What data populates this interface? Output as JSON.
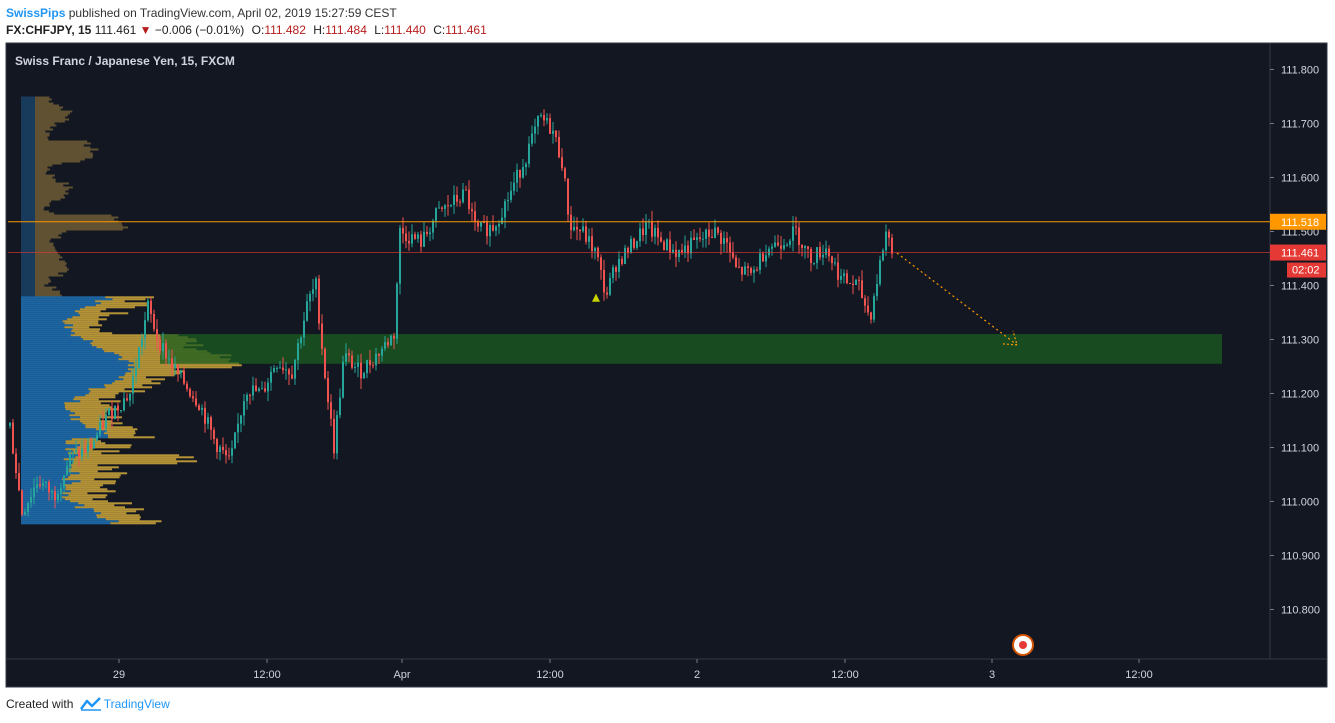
{
  "header": {
    "author": "SwissPips",
    "published_text": "published on TradingView.com, April 02, 2019 15:27:59 CEST",
    "symbol": "FX:CHFJPY, 15",
    "last_price": "111.461",
    "change_arrow": "▼",
    "change": "−0.006 (−0.01%)",
    "open_label": "O:",
    "open": "111.482",
    "high_label": "H:",
    "high": "111.484",
    "low_label": "L:",
    "low": "111.440",
    "close_label": "C:",
    "close": "111.461"
  },
  "chart_data": {
    "type": "candlestick",
    "title": "Swiss Franc / Japanese Yen, 15, FXCM",
    "price_axis_ticks": [
      "111.800",
      "111.700",
      "111.600",
      "111.500",
      "111.400",
      "111.300",
      "111.200",
      "111.100",
      "111.000",
      "110.900",
      "110.800"
    ],
    "time_axis_ticks": [
      "29",
      "12:00",
      "Apr",
      "12:00",
      "2",
      "12:00",
      "3",
      "12:00"
    ],
    "ylim": [
      110.73,
      111.85
    ],
    "grid": false,
    "price_line": {
      "value": 111.518,
      "label": "111.518",
      "color": "#ff9800"
    },
    "last_price": {
      "value": 111.461,
      "label": "111.461",
      "countdown": "02:02",
      "color": "#e53935"
    },
    "zone": {
      "y_low": 111.255,
      "y_high": 111.31,
      "color": "#1b5e20"
    },
    "projection": {
      "from_price": 111.46,
      "to_price": 111.29,
      "color": "#ff9800"
    },
    "waypoints": [
      [
        0,
        111.14
      ],
      [
        12,
        110.98
      ],
      [
        28,
        111.04
      ],
      [
        44,
        111.01
      ],
      [
        60,
        111.08
      ],
      [
        80,
        111.1
      ],
      [
        98,
        111.16
      ],
      [
        120,
        111.2
      ],
      [
        138,
        111.36
      ],
      [
        148,
        111.3
      ],
      [
        166,
        111.24
      ],
      [
        190,
        111.18
      ],
      [
        205,
        111.11
      ],
      [
        220,
        111.07
      ],
      [
        236,
        111.21
      ],
      [
        252,
        111.2
      ],
      [
        266,
        111.26
      ],
      [
        282,
        111.24
      ],
      [
        298,
        111.37
      ],
      [
        306,
        111.4
      ],
      [
        314,
        111.25
      ],
      [
        324,
        111.1
      ],
      [
        334,
        111.27
      ],
      [
        350,
        111.24
      ],
      [
        366,
        111.27
      ],
      [
        384,
        111.31
      ],
      [
        390,
        111.5
      ],
      [
        400,
        111.49
      ],
      [
        412,
        111.48
      ],
      [
        426,
        111.53
      ],
      [
        440,
        111.55
      ],
      [
        456,
        111.57
      ],
      [
        466,
        111.5
      ],
      [
        484,
        111.51
      ],
      [
        500,
        111.57
      ],
      [
        516,
        111.64
      ],
      [
        530,
        111.71
      ],
      [
        542,
        111.69
      ],
      [
        552,
        111.63
      ],
      [
        560,
        111.51
      ],
      [
        572,
        111.5
      ],
      [
        586,
        111.46
      ],
      [
        596,
        111.38
      ],
      [
        606,
        111.44
      ],
      [
        620,
        111.47
      ],
      [
        636,
        111.51
      ],
      [
        652,
        111.48
      ],
      [
        668,
        111.46
      ],
      [
        686,
        111.48
      ],
      [
        704,
        111.5
      ],
      [
        716,
        111.48
      ],
      [
        726,
        111.43
      ],
      [
        742,
        111.42
      ],
      [
        756,
        111.47
      ],
      [
        770,
        111.48
      ],
      [
        786,
        111.5
      ],
      [
        800,
        111.45
      ],
      [
        816,
        111.47
      ],
      [
        832,
        111.41
      ],
      [
        848,
        111.4
      ],
      [
        860,
        111.34
      ],
      [
        868,
        111.42
      ],
      [
        876,
        111.5
      ],
      [
        884,
        111.46
      ]
    ]
  },
  "footer": {
    "created_with": "Created with",
    "brand": "TradingView"
  }
}
